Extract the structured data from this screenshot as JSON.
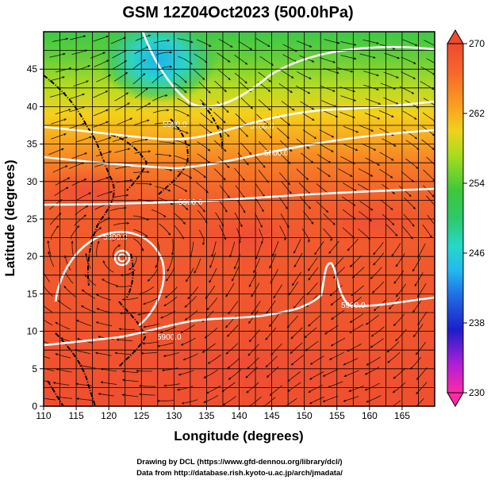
{
  "title": "GSM 12Z04Oct2023 (500.0hPa)",
  "credits": {
    "line1": "Drawing by DCL (https://www.gfd-dennou.org/library/dcl/)",
    "line2": "Data from http://database.rish.kyoto-u.ac.jp/arch/jmadata/"
  },
  "chart_data": {
    "type": "heatmap",
    "title": "GSM 12Z04Oct2023 (500.0hPa)",
    "xlabel": "Longitude (degrees)",
    "ylabel": "Latitude  (degrees)",
    "xlim": [
      110,
      170
    ],
    "ylim": [
      0,
      50
    ],
    "x_ticks": [
      "110",
      "115",
      "120",
      "125",
      "130",
      "135",
      "140",
      "145",
      "150",
      "155",
      "160",
      "165"
    ],
    "y_ticks": [
      "0",
      "5",
      "10",
      "15",
      "20",
      "25",
      "30",
      "35",
      "40",
      "45"
    ],
    "colorbar": {
      "ticks": [
        "270",
        "262",
        "254",
        "246",
        "238",
        "230"
      ],
      "range": [
        230,
        270
      ],
      "colors": [
        "#ff2aa6",
        "#b01fd8",
        "#1e1ec8",
        "#1f6fe6",
        "#24b8f0",
        "#27d8c8",
        "#2fc86a",
        "#3fc83a",
        "#a8dc1e",
        "#f0d21c",
        "#fb9f22",
        "#f7662a",
        "#ee4a30"
      ]
    },
    "contours": {
      "field": "geopotential height",
      "levels": [
        "5500.0",
        "5700.0",
        "5800.0",
        "5900.0"
      ],
      "labels": [
        "5500.0",
        "5700.0",
        "5800.0",
        "5900.0",
        "5800.0",
        "5900.0",
        "5900.0",
        "5900.0"
      ]
    },
    "grid": true,
    "overlay": "wind streamlines"
  }
}
